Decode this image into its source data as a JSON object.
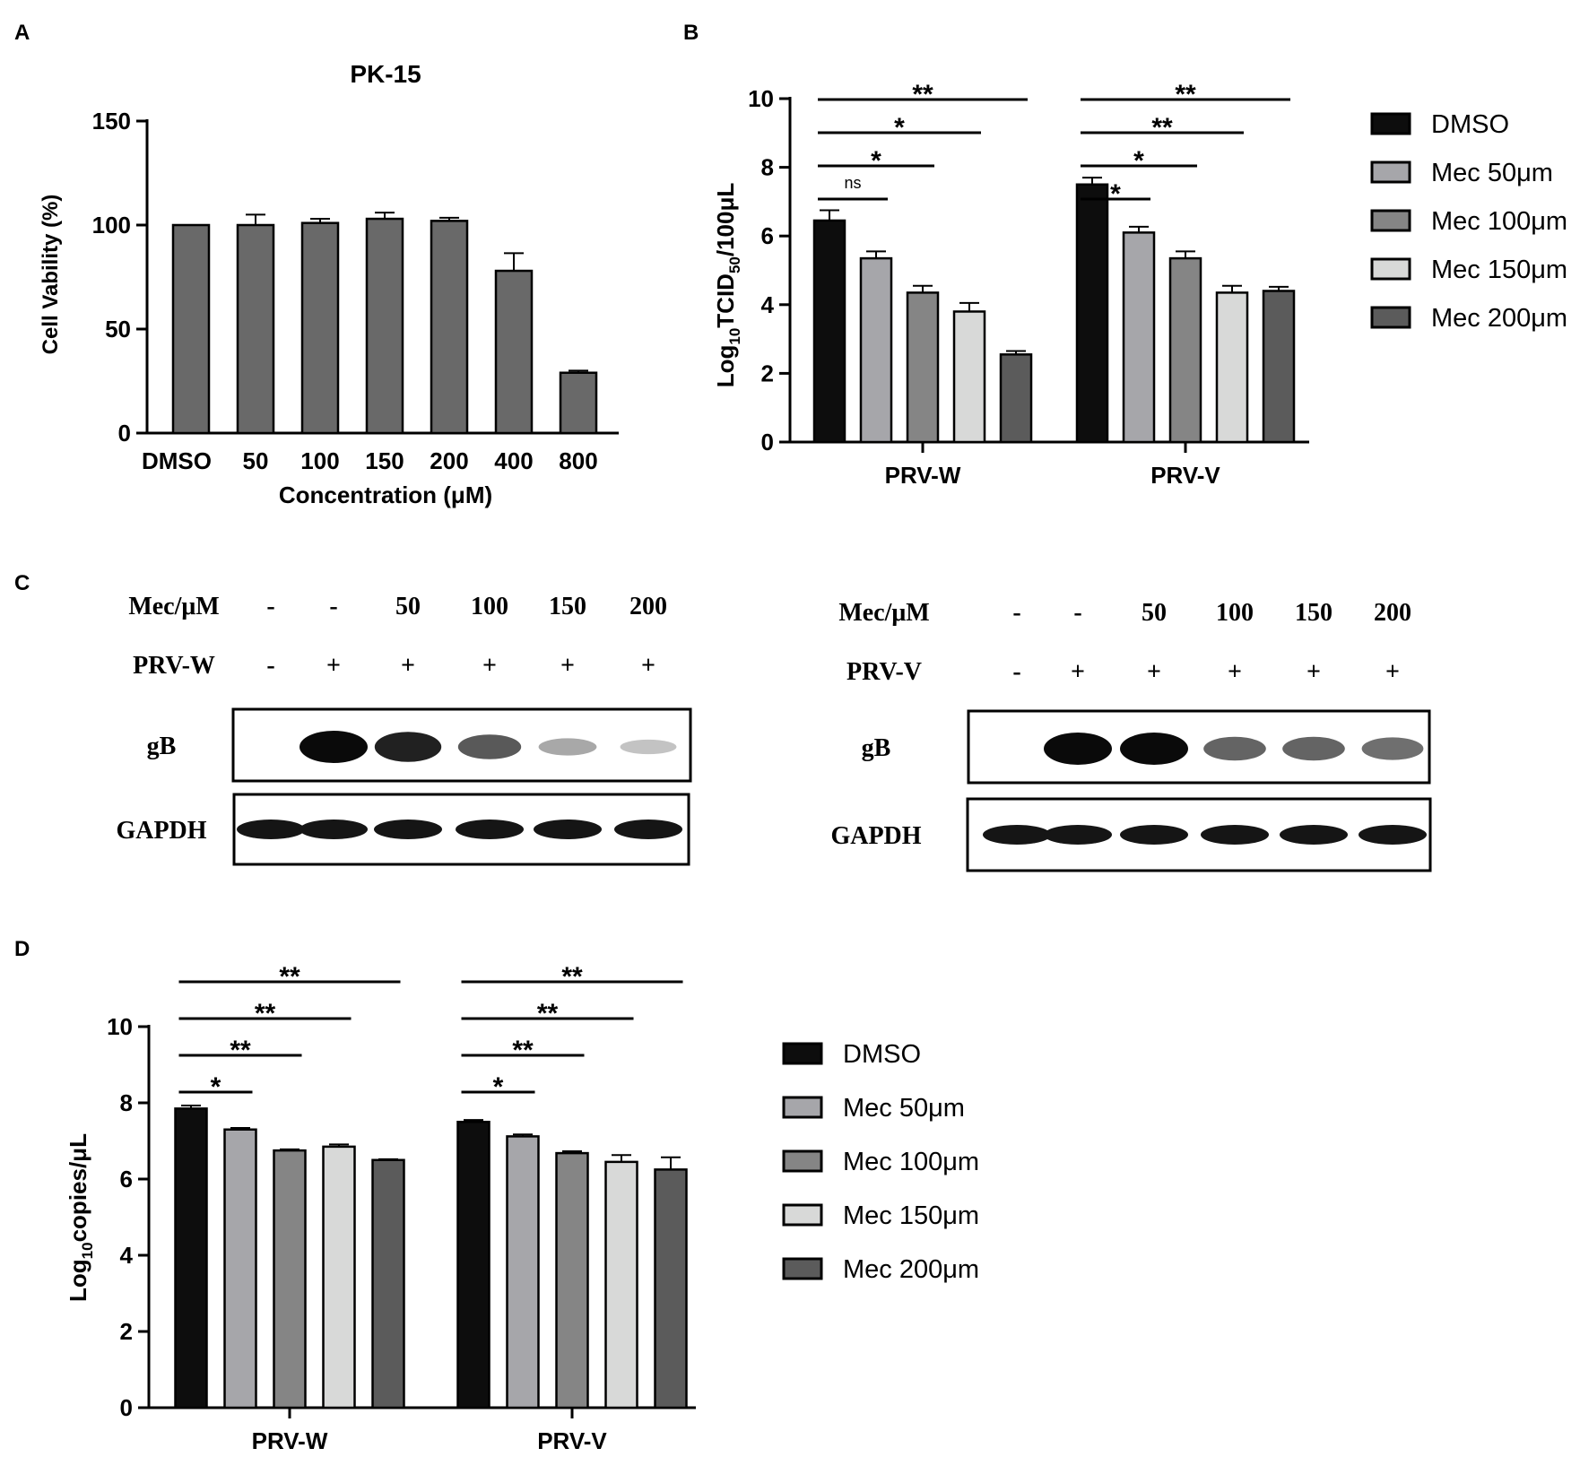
{
  "panel_labels": {
    "a": "A",
    "b": "B",
    "c": "C",
    "d": "D"
  },
  "colors": {
    "DMSO": "#0d0d0d",
    "Mec 50μm": "#a6a6aa",
    "Mec 100μm": "#858585",
    "Mec 150μm": "#d8d9d8",
    "Mec 200μm": "#5b5b5b",
    "panel_a_bar": "#696969"
  },
  "chart_data": [
    {
      "id": "A",
      "type": "bar",
      "title": "PK-15",
      "xlabel": "Concentration (μM)",
      "ylabel": "Cell Vability (%)",
      "categories": [
        "DMSO",
        "50",
        "100",
        "150",
        "200",
        "400",
        "800"
      ],
      "values": [
        100,
        100,
        101,
        103,
        102,
        78,
        29
      ],
      "errors": [
        0,
        5,
        2,
        3,
        1.5,
        8.5,
        1
      ],
      "ylim": [
        0,
        150
      ],
      "yticks": [
        0,
        50,
        100,
        150
      ],
      "grid": false,
      "legend": "none"
    },
    {
      "id": "B",
      "type": "bar",
      "xlabel": "",
      "ylabel": "Log10TCID50/100μL",
      "ylabel_parts": {
        "pre": "Log",
        "sub1": "10",
        "mid": "TCID",
        "sub2": "50",
        "post": "/100μL"
      },
      "categories": [
        "PRV-W",
        "PRV-V"
      ],
      "series": [
        {
          "name": "DMSO",
          "values": [
            6.45,
            7.5
          ],
          "errors": [
            0.3,
            0.2
          ]
        },
        {
          "name": "Mec 50μm",
          "values": [
            5.35,
            6.1
          ],
          "errors": [
            0.2,
            0.17
          ]
        },
        {
          "name": "Mec 100μm",
          "values": [
            4.35,
            5.35
          ],
          "errors": [
            0.2,
            0.2
          ]
        },
        {
          "name": "Mec 150μm",
          "values": [
            3.8,
            4.35
          ],
          "errors": [
            0.25,
            0.2
          ]
        },
        {
          "name": "Mec 200μm",
          "values": [
            2.55,
            4.4
          ],
          "errors": [
            0.1,
            0.12
          ]
        }
      ],
      "ylim": [
        0,
        10
      ],
      "yticks": [
        0,
        2,
        4,
        6,
        8,
        10
      ],
      "significance": [
        {
          "group": 0,
          "to": 1,
          "label": "ns"
        },
        {
          "group": 0,
          "to": 2,
          "label": "*"
        },
        {
          "group": 0,
          "to": 3,
          "label": "*"
        },
        {
          "group": 0,
          "to": 4,
          "label": "**"
        },
        {
          "group": 1,
          "to": 1,
          "label": "*"
        },
        {
          "group": 1,
          "to": 2,
          "label": "*"
        },
        {
          "group": 1,
          "to": 3,
          "label": "**"
        },
        {
          "group": 1,
          "to": 4,
          "label": "**"
        }
      ],
      "grid": false,
      "legend": "right"
    },
    {
      "id": "D",
      "type": "bar",
      "xlabel": "",
      "ylabel": "Log10copies/μL",
      "ylabel_parts": {
        "pre": "Log",
        "sub1": "10",
        "post": "copies/μL"
      },
      "categories": [
        "PRV-W",
        "PRV-V"
      ],
      "series": [
        {
          "name": "DMSO",
          "values": [
            7.85,
            7.5
          ],
          "errors": [
            0.08,
            0.05
          ]
        },
        {
          "name": "Mec 50μm",
          "values": [
            7.3,
            7.12
          ],
          "errors": [
            0.04,
            0.05
          ]
        },
        {
          "name": "Mec 100μm",
          "values": [
            6.75,
            6.68
          ],
          "errors": [
            0.03,
            0.05
          ]
        },
        {
          "name": "Mec 150μm",
          "values": [
            6.85,
            6.45
          ],
          "errors": [
            0.06,
            0.18
          ]
        },
        {
          "name": "Mec 200μm",
          "values": [
            6.5,
            6.25
          ],
          "errors": [
            0.02,
            0.32
          ]
        }
      ],
      "ylim": [
        0,
        10
      ],
      "yticks": [
        0,
        2,
        4,
        6,
        8,
        10
      ],
      "significance": [
        {
          "group": 0,
          "to": 1,
          "label": "*"
        },
        {
          "group": 0,
          "to": 2,
          "label": "**"
        },
        {
          "group": 0,
          "to": 3,
          "label": "**"
        },
        {
          "group": 0,
          "to": 4,
          "label": "**"
        },
        {
          "group": 1,
          "to": 1,
          "label": "*"
        },
        {
          "group": 1,
          "to": 2,
          "label": "**"
        },
        {
          "group": 1,
          "to": 3,
          "label": "**"
        },
        {
          "group": 1,
          "to": 4,
          "label": "**"
        }
      ],
      "grid": false,
      "legend": "right"
    }
  ],
  "western_blot": {
    "left": {
      "mec_label": "Mec/μM",
      "virus_label": "PRV-W",
      "mec_values": [
        "-",
        "-",
        "50",
        "100",
        "150",
        "200"
      ],
      "virus_values": [
        "-",
        "+",
        "+",
        "+",
        "+",
        "+"
      ],
      "bands": [
        {
          "label": "gB",
          "intensity": [
            0,
            1.0,
            0.9,
            0.65,
            0.3,
            0.18
          ]
        },
        {
          "label": "GAPDH",
          "intensity": [
            0.95,
            0.95,
            0.95,
            0.95,
            0.95,
            0.95
          ]
        }
      ]
    },
    "right": {
      "mec_label": "Mec/μM",
      "virus_label": "PRV-V",
      "mec_values": [
        "-",
        "-",
        "50",
        "100",
        "150",
        "200"
      ],
      "virus_values": [
        "-",
        "+",
        "+",
        "+",
        "+",
        "+"
      ],
      "bands": [
        {
          "label": "gB",
          "intensity": [
            0,
            1.0,
            1.0,
            0.6,
            0.6,
            0.55
          ]
        },
        {
          "label": "GAPDH",
          "intensity": [
            0.95,
            0.95,
            0.95,
            0.95,
            0.95,
            0.95
          ]
        }
      ]
    }
  }
}
